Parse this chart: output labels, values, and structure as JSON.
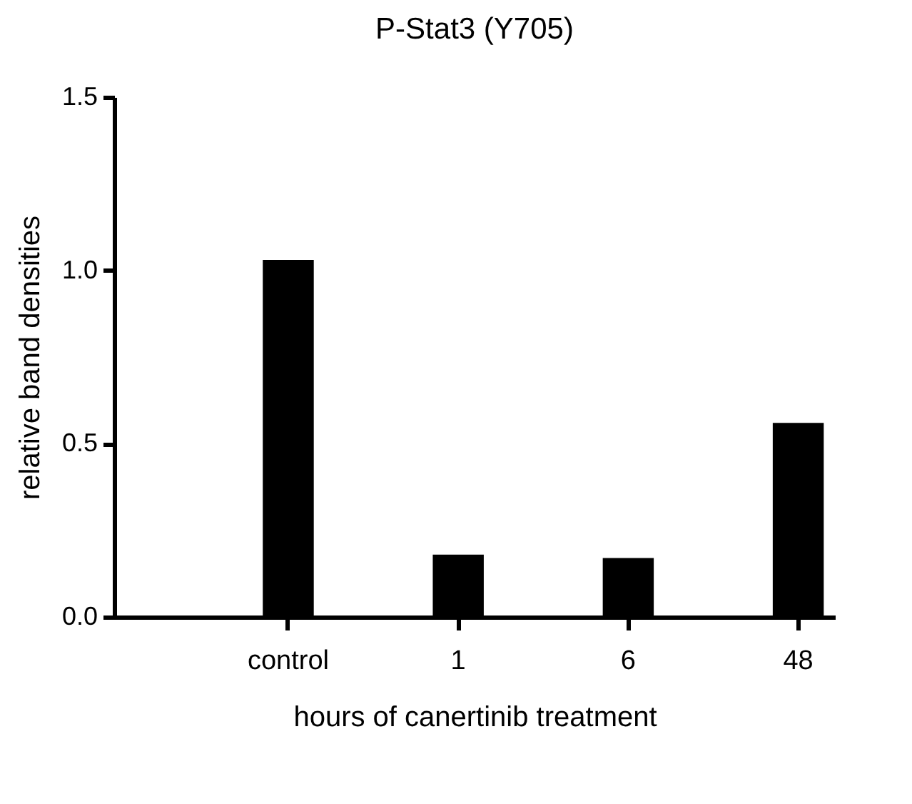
{
  "chart_data": {
    "type": "bar",
    "title": "P-Stat3 (Y705)",
    "xlabel": "hours of canertinib treatment",
    "ylabel": "relative band densities",
    "categories": [
      "control",
      "1",
      "6",
      "48"
    ],
    "values": [
      1.03,
      0.18,
      0.17,
      0.56
    ],
    "color": "#000000",
    "ylim": [
      0,
      1.5
    ],
    "yticks": [
      {
        "value": 0,
        "label": "0.0"
      },
      0.5,
      {
        "value": 1,
        "label": "1.0"
      },
      1.5
    ],
    "grid": false
  }
}
